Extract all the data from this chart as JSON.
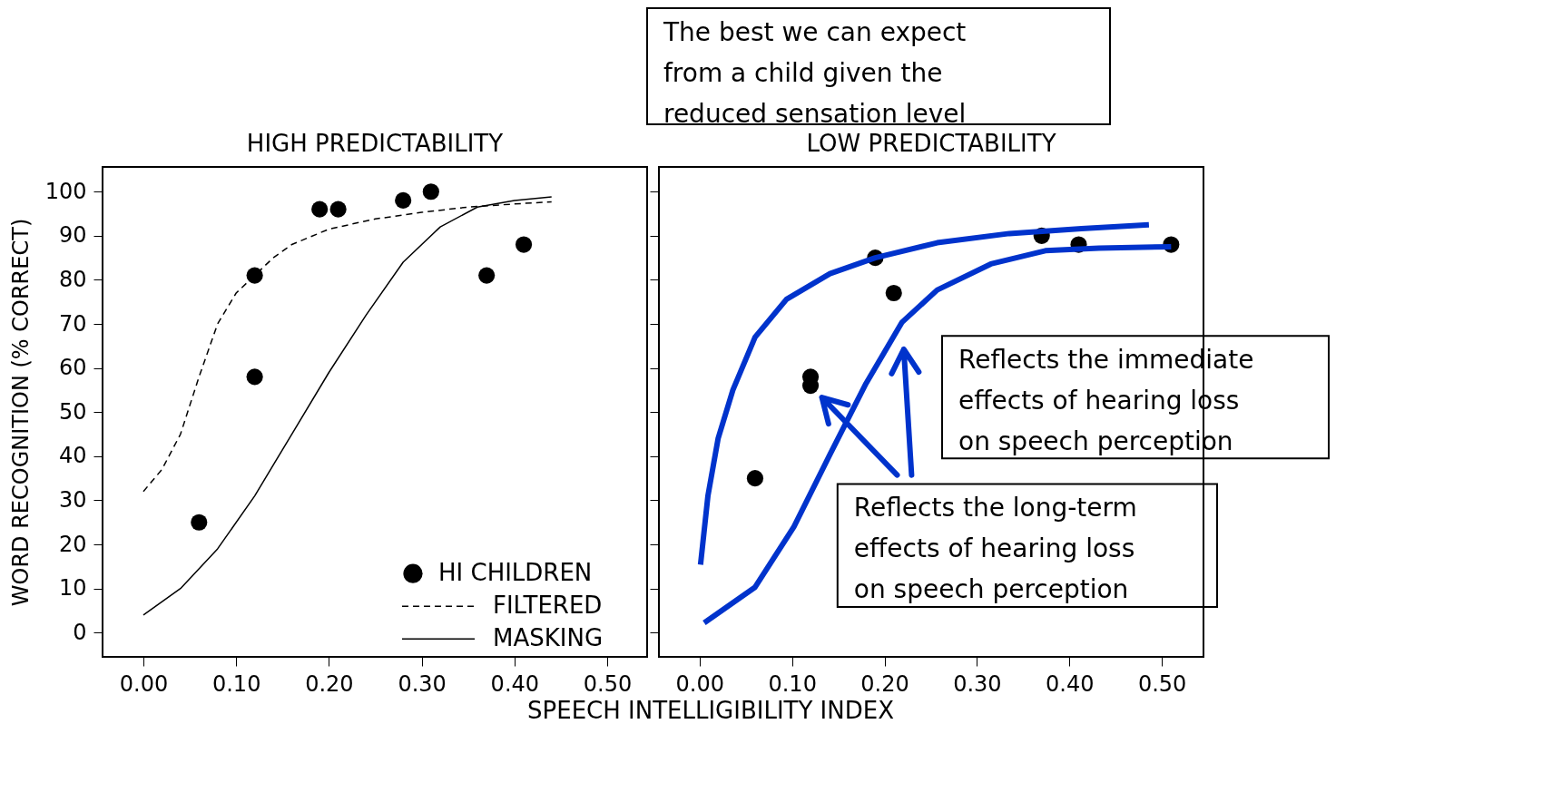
{
  "chart_data": [
    {
      "type": "scatter",
      "title": "HIGH PREDICTABILITY",
      "xlabel": "SPEECH INTELLIGIBILITY INDEX",
      "ylabel": "WORD RECOGNITION (% CORRECT)",
      "xlim": [
        -0.044,
        0.543
      ],
      "ylim": [
        -5.5,
        105.6
      ],
      "xticks": [
        {
          "value": 0,
          "label": "0.00"
        },
        {
          "value": 0.1,
          "label": "0.10"
        },
        {
          "value": 0.2,
          "label": "0.20"
        },
        {
          "value": 0.3,
          "label": "0.30"
        },
        {
          "value": 0.4,
          "label": "0.40"
        },
        {
          "value": 0.5,
          "label": "0.50"
        }
      ],
      "yticks": [
        0,
        10,
        20,
        30,
        40,
        50,
        60,
        70,
        80,
        90,
        100
      ],
      "grid": false,
      "legend": "bottom right",
      "annotations": [
        "The best we can expect\nfrom a child given the\nreduced sensation level"
      ],
      "series": [
        {
          "name": "HI CHILDREN",
          "marker": "circle",
          "color": "#000000",
          "x": [
            0.06,
            0.12,
            0.12,
            0.19,
            0.21,
            0.28,
            0.31,
            0.37,
            0.41
          ],
          "values": [
            25,
            81,
            58,
            96,
            96,
            98,
            100,
            81,
            88
          ]
        },
        {
          "name": "FILTERED",
          "type": "line",
          "marker": "none",
          "line_style": "dashed",
          "color": "#000000",
          "x": [
            0,
            0.02,
            0.04,
            0.06,
            0.08,
            0.1,
            0.12,
            0.14,
            0.16,
            0.2,
            0.25,
            0.3,
            0.35,
            0.4,
            0.44
          ],
          "values": [
            32,
            37,
            45,
            58,
            70,
            77,
            81,
            85,
            88,
            91.5,
            93.8,
            95.3,
            96.5,
            97.2,
            97.7
          ]
        },
        {
          "name": "MASKING",
          "type": "line",
          "marker": "none",
          "line_style": "solid",
          "color": "#000000",
          "x": [
            0,
            0.04,
            0.08,
            0.12,
            0.16,
            0.2,
            0.24,
            0.28,
            0.32,
            0.36,
            0.4,
            0.44
          ],
          "values": [
            4,
            10,
            19,
            31,
            45,
            59,
            72,
            84,
            92,
            96.5,
            98,
            98.8
          ]
        }
      ]
    },
    {
      "type": "scatter",
      "title": "LOW PREDICTABILITY",
      "tick_labels": "x",
      "xlim": [
        -0.044,
        0.545
      ],
      "ylim": [
        -5.5,
        105.6
      ],
      "xticks": [
        {
          "value": 0,
          "label": "0.00"
        },
        {
          "value": 0.1,
          "label": "0.10"
        },
        {
          "value": 0.2,
          "label": "0.20"
        },
        {
          "value": 0.3,
          "label": "0.30"
        },
        {
          "value": 0.4,
          "label": "0.40"
        },
        {
          "value": 0.5,
          "label": "0.50"
        }
      ],
      "yticks": [
        0,
        10,
        20,
        30,
        40,
        50,
        60,
        70,
        80,
        90,
        100
      ],
      "grid": false,
      "annotations": [
        "Reflects the immediate\neffects of hearing loss\non speech perception",
        "Reflects the long-term\neffects of hearing loss\non speech perception"
      ],
      "series": [
        {
          "marker": "circle",
          "color": "#000000",
          "x": [
            0.06,
            0.12,
            0.12,
            0.19,
            0.21,
            0.37,
            0.41,
            0.51
          ],
          "values": [
            35,
            58,
            56,
            85,
            77,
            90,
            88,
            88
          ]
        },
        {
          "type": "line",
          "marker": "none",
          "line_style": "solid",
          "color": "#0033cc",
          "x": [
            0.001,
            0.009,
            0.02,
            0.036,
            0.06,
            0.094,
            0.141,
            0.19,
            0.257,
            0.335,
            0.413,
            0.486
          ],
          "values": [
            15.4,
            31,
            44,
            55,
            67,
            75.6,
            81.4,
            85,
            88.4,
            90.5,
            91.6,
            92.5
          ]
        },
        {
          "type": "line",
          "marker": "none",
          "line_style": "solid",
          "color": "#0033cc",
          "x": [
            0.005,
            0.06,
            0.102,
            0.141,
            0.18,
            0.219,
            0.257,
            0.315,
            0.374,
            0.432,
            0.51
          ],
          "values": [
            2.2,
            10.3,
            24,
            40.4,
            56.5,
            70.4,
            77.7,
            83.6,
            86.6,
            87.2,
            87.5
          ]
        }
      ]
    }
  ]
}
